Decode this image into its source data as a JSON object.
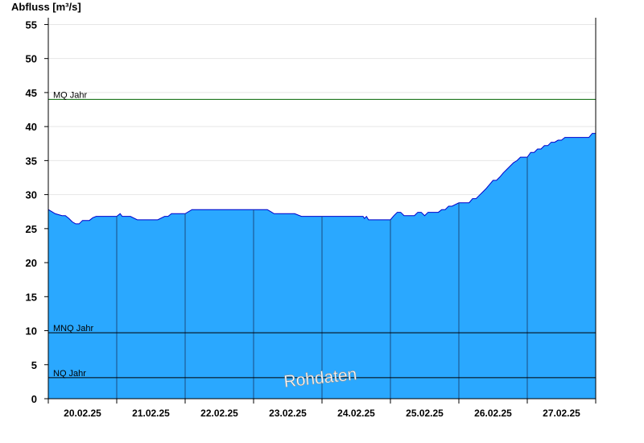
{
  "chart_data": {
    "type": "area",
    "ylabel": "Abfluss [m³/s]",
    "ylim": [
      0,
      56
    ],
    "yticks": [
      0,
      5,
      10,
      15,
      20,
      25,
      30,
      35,
      40,
      45,
      50,
      55
    ],
    "xlim": [
      0,
      8
    ],
    "day_labels": [
      "20.02.25",
      "21.02.25",
      "22.02.25",
      "23.02.25",
      "24.02.25",
      "25.02.25",
      "26.02.25",
      "27.02.25"
    ],
    "watermark": "Rohdaten",
    "colors": {
      "fill": "#2aa8ff",
      "line": "#0000cc",
      "mq_line": "#006400",
      "ref_line": "#000000"
    },
    "reference_lines": [
      {
        "label": "MQ Jahr",
        "value": 44.0
      },
      {
        "label": "MNQ Jahr",
        "value": 9.7
      },
      {
        "label": "NQ Jahr",
        "value": 3.1
      }
    ],
    "series": [
      {
        "x": [
          0,
          0.05,
          0.1,
          0.2,
          0.25,
          0.3,
          0.35,
          0.4,
          0.45,
          0.5,
          0.55,
          0.6,
          0.65,
          0.7,
          0.75,
          0.8,
          0.9,
          1.0,
          1.05,
          1.08,
          1.1,
          1.2,
          1.3,
          1.4,
          1.5,
          1.6,
          1.7,
          1.75,
          1.8,
          1.9,
          2.0,
          2.1,
          2.2,
          2.3,
          2.5,
          2.7,
          2.9,
          3.1,
          3.2,
          3.25,
          3.3,
          3.4,
          3.6,
          3.7,
          3.8,
          4.0,
          4.2,
          4.4,
          4.6,
          4.62,
          4.65,
          4.68,
          4.7,
          4.8,
          4.9,
          5.0,
          5.05,
          5.1,
          5.15,
          5.2,
          5.3,
          5.35,
          5.4,
          5.45,
          5.5,
          5.55,
          5.6,
          5.7,
          5.75,
          5.8,
          5.85,
          5.9,
          6.0,
          6.05,
          6.1,
          6.15,
          6.2,
          6.25,
          6.3,
          6.35,
          6.4,
          6.45,
          6.5,
          6.55,
          6.6,
          6.65,
          6.7,
          6.75,
          6.8,
          6.85,
          6.9,
          6.95,
          7.0,
          7.05,
          7.1,
          7.15,
          7.2,
          7.25,
          7.3,
          7.35,
          7.4,
          7.45,
          7.5,
          7.55,
          7.6,
          7.7,
          7.8,
          7.9,
          7.95,
          8.0
        ],
        "y": [
          27.8,
          27.5,
          27.2,
          26.9,
          26.9,
          26.5,
          26.0,
          25.7,
          25.7,
          26.2,
          26.2,
          26.2,
          26.6,
          26.8,
          26.8,
          26.8,
          26.8,
          26.8,
          27.2,
          26.8,
          26.8,
          26.8,
          26.3,
          26.3,
          26.3,
          26.3,
          26.8,
          26.8,
          27.2,
          27.2,
          27.2,
          27.8,
          27.8,
          27.8,
          27.8,
          27.8,
          27.8,
          27.8,
          27.8,
          27.5,
          27.2,
          27.2,
          27.2,
          26.8,
          26.8,
          26.8,
          26.8,
          26.8,
          26.8,
          26.5,
          26.8,
          26.3,
          26.3,
          26.3,
          26.3,
          26.3,
          26.9,
          27.4,
          27.4,
          26.9,
          26.9,
          26.9,
          27.4,
          27.4,
          26.9,
          27.4,
          27.4,
          27.4,
          27.8,
          27.8,
          28.3,
          28.3,
          28.8,
          28.8,
          28.8,
          28.8,
          29.4,
          29.4,
          29.9,
          30.4,
          30.9,
          31.5,
          32.1,
          32.1,
          32.6,
          33.2,
          33.7,
          34.2,
          34.7,
          35.0,
          35.5,
          35.5,
          35.5,
          36.2,
          36.2,
          36.7,
          36.7,
          37.2,
          37.2,
          37.7,
          37.7,
          38.0,
          38.0,
          38.4,
          38.4,
          38.4,
          38.4,
          38.4,
          39.0,
          39.0
        ]
      }
    ]
  }
}
